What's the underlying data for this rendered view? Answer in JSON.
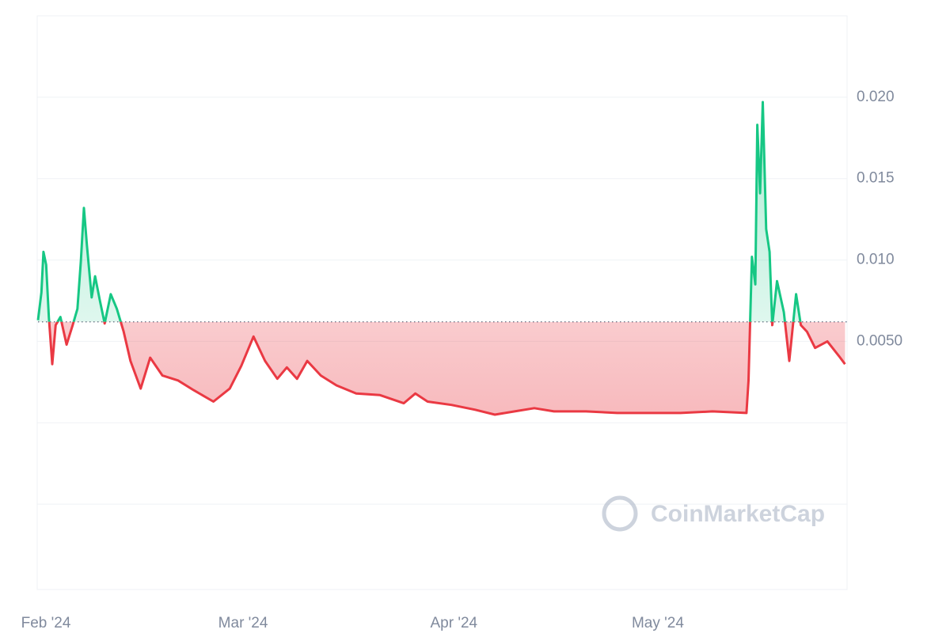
{
  "chart_data": {
    "type": "line",
    "watermark": "CoinMarketCap",
    "baseline": 0.0062,
    "x": [
      0,
      0.5,
      0.8,
      1.2,
      1.6,
      2.1,
      2.6,
      3.3,
      4.2,
      5.1,
      5.8,
      6.3,
      6.75,
      7.2,
      7.9,
      8.4,
      9.1,
      9.8,
      10.7,
      11.6,
      12.6,
      13.6,
      15.1,
      16.5,
      18.3,
      20.6,
      22.9,
      25.8,
      28.2,
      29.9,
      31.7,
      33.4,
      35.2,
      36.6,
      38.1,
      39.6,
      41.6,
      43.9,
      46.8,
      50.3,
      53.8,
      55.5,
      57.3,
      60.8,
      64.3,
      67.2,
      70.1,
      73.0,
      75.9,
      80.6,
      85.2,
      89.9,
      94.5,
      99.2,
      104.2,
      104.5,
      105.0,
      105.5,
      105.8,
      106.2,
      106.6,
      107.1,
      107.6,
      108.0,
      108.7,
      109.7,
      110.5,
      111.5,
      112.2,
      113.1,
      114.3,
      116.1,
      117.8,
      118.7
    ],
    "series": [
      {
        "name": null,
        "color": "#16c784",
        "color_below": "#ea3943",
        "values": [
          0.0063,
          0.008,
          0.0105,
          0.0097,
          0.0065,
          0.0036,
          0.006,
          0.0065,
          0.0048,
          0.006,
          0.007,
          0.0099,
          0.0132,
          0.0109,
          0.0077,
          0.009,
          0.0075,
          0.0061,
          0.0079,
          0.007,
          0.0056,
          0.0038,
          0.0021,
          0.004,
          0.0029,
          0.0026,
          0.002,
          0.0013,
          0.0021,
          0.0035,
          0.0053,
          0.0038,
          0.0027,
          0.0034,
          0.0027,
          0.0038,
          0.0029,
          0.0023,
          0.0018,
          0.0017,
          0.0012,
          0.0018,
          0.0013,
          0.0011,
          0.0008,
          0.0005,
          0.0007,
          0.0009,
          0.0007,
          0.0007,
          0.0006,
          0.0006,
          0.0006,
          0.0007,
          0.0006,
          0.0026,
          0.0102,
          0.0085,
          0.0183,
          0.0141,
          0.0197,
          0.0119,
          0.0105,
          0.006,
          0.0087,
          0.0068,
          0.0038,
          0.0079,
          0.006,
          0.0056,
          0.0046,
          0.005,
          0.0041,
          0.0036
        ]
      }
    ],
    "xlim": [
      0,
      119
    ],
    "xticks": [
      {
        "value": 0,
        "label": "Feb '24"
      },
      {
        "value": 29,
        "label": "Mar '24"
      },
      {
        "value": 60,
        "label": "Apr '24"
      },
      {
        "value": 90,
        "label": "May '24"
      }
    ],
    "ylim": [
      -0.01,
      0.025
    ],
    "yticks": [
      {
        "value": 0.005,
        "label": "0.0050"
      },
      {
        "value": 0.01,
        "label": "0.010"
      },
      {
        "value": 0.015,
        "label": "0.015"
      },
      {
        "value": 0.02,
        "label": "0.020"
      }
    ],
    "minor_gridlines": [
      0,
      -0.005
    ],
    "grid": true
  }
}
